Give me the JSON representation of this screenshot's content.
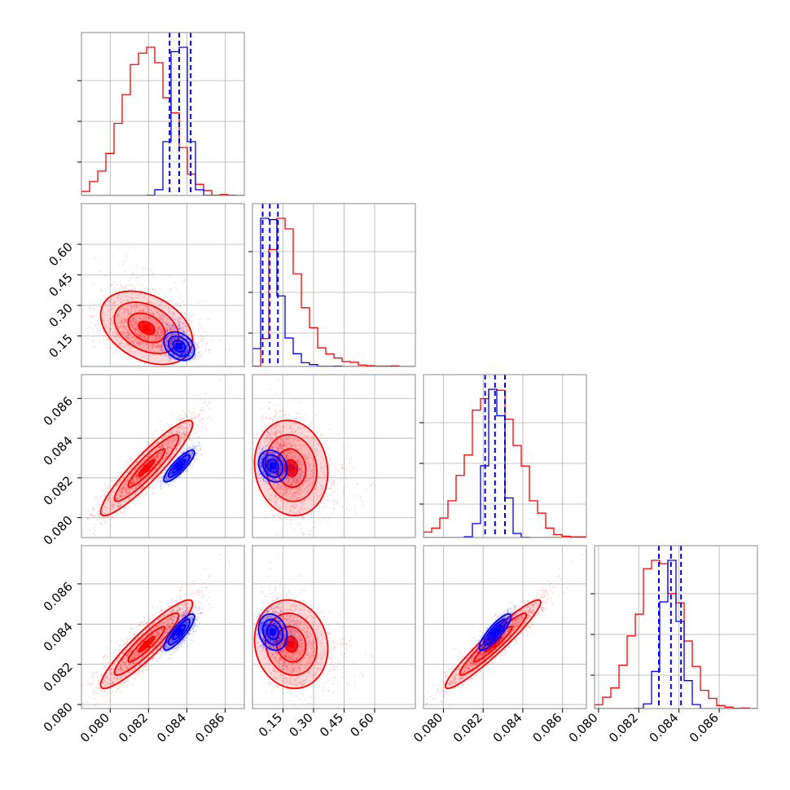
{
  "colors": {
    "series_a": "#ff0000",
    "series_b": "#0000ff"
  },
  "chart_data": {
    "type": "corner",
    "parameters": [
      {
        "range": [
          0.0785,
          0.087
        ],
        "ticks": [
          "0.080",
          "0.082",
          "0.084",
          "0.086"
        ],
        "tick_values": [
          0.08,
          0.082,
          0.084,
          0.086
        ]
      },
      {
        "range": [
          0.0,
          0.8
        ],
        "ticks": [
          "0.15",
          "0.30",
          "0.45",
          "0.60"
        ],
        "tick_values": [
          0.15,
          0.3,
          0.45,
          0.6
        ]
      },
      {
        "range": [
          0.079,
          0.0872
        ],
        "ticks": [
          "0.080",
          "0.082",
          "0.084",
          "0.086"
        ],
        "tick_values": [
          0.08,
          0.082,
          0.084,
          0.086
        ]
      },
      {
        "range": [
          0.0798,
          0.0879
        ],
        "ticks": [
          "0.080",
          "0.082",
          "0.084",
          "0.086"
        ],
        "tick_values": [
          0.08,
          0.082,
          0.084,
          0.086
        ]
      }
    ],
    "series": [
      {
        "color": "#ff0000",
        "means": [
          0.0819,
          0.19,
          0.0825,
          0.083
        ],
        "stds": [
          0.0012,
          0.09,
          0.0012,
          0.0011
        ],
        "correlations": [
          [
            0,
            1,
            -0.35
          ],
          [
            0,
            2,
            0.92
          ],
          [
            0,
            3,
            0.92
          ],
          [
            1,
            2,
            -0.1
          ],
          [
            1,
            3,
            -0.1
          ],
          [
            2,
            3,
            0.95
          ]
        ]
      },
      {
        "color": "#0000ff",
        "means": [
          0.0836,
          0.1,
          0.0826,
          0.0836
        ],
        "stds": [
          0.0004,
          0.035,
          0.0004,
          0.00045
        ],
        "correlations": [
          [
            0,
            1,
            -0.3
          ],
          [
            0,
            2,
            0.85
          ],
          [
            0,
            3,
            0.85
          ],
          [
            1,
            2,
            -0.2
          ],
          [
            1,
            3,
            -0.2
          ],
          [
            2,
            3,
            0.85
          ]
        ]
      }
    ],
    "quantile_lines": [
      [
        0.0831,
        0.0836,
        0.0842
      ],
      [
        0.05,
        0.085,
        0.125
      ],
      [
        0.0821,
        0.0826,
        0.0831
      ],
      [
        0.083,
        0.0836,
        0.0841
      ]
    ],
    "grid": true
  }
}
